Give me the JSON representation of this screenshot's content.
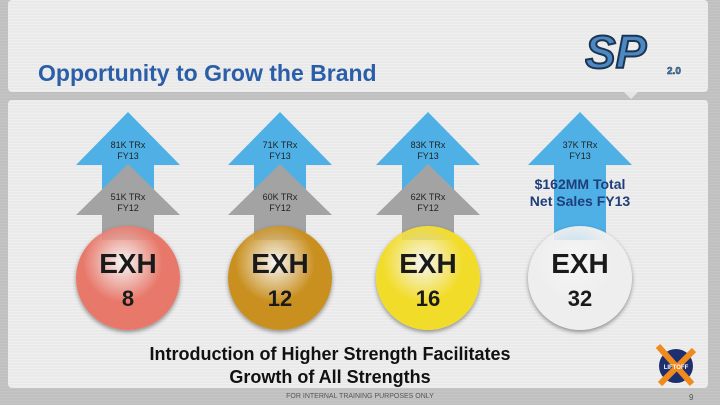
{
  "title": "Opportunity to Grow the Brand",
  "logo_text": "SP 2.0",
  "products": [
    {
      "fy13": "81K TRx",
      "fy13_label": "FY13",
      "fy12": "51K TRx",
      "fy12_label": "FY12",
      "name": "EXH",
      "strength": "8",
      "color": "#e8786a"
    },
    {
      "fy13": "71K TRx",
      "fy13_label": "FY13",
      "fy12": "60K TRx",
      "fy12_label": "FY12",
      "name": "EXH",
      "strength": "12",
      "color": "#c99020"
    },
    {
      "fy13": "83K TRx",
      "fy13_label": "FY13",
      "fy12": "62K TRx",
      "fy12_label": "FY12",
      "name": "EXH",
      "strength": "16",
      "color": "#f2dc2a"
    },
    {
      "fy13": "37K TRx",
      "fy13_label": "FY13",
      "name": "EXH",
      "strength": "32",
      "color": "#eeeeee"
    }
  ],
  "net_sales": {
    "line1": "$162MM Total",
    "line2": "Net Sales FY13"
  },
  "caption": {
    "line1": "Introduction of Higher Strength Facilitates",
    "line2": "Growth of All Strengths"
  },
  "footer": "FOR INTERNAL TRAINING PURPOSES ONLY",
  "page_number": "9",
  "liftoff_logo": "LIFTOFF",
  "colors": {
    "title": "#2b5ea8",
    "arrow_fy13": "#4fb0e6",
    "arrow_fy12": "#a3a3a3",
    "net_sales": "#1f3e7a"
  }
}
